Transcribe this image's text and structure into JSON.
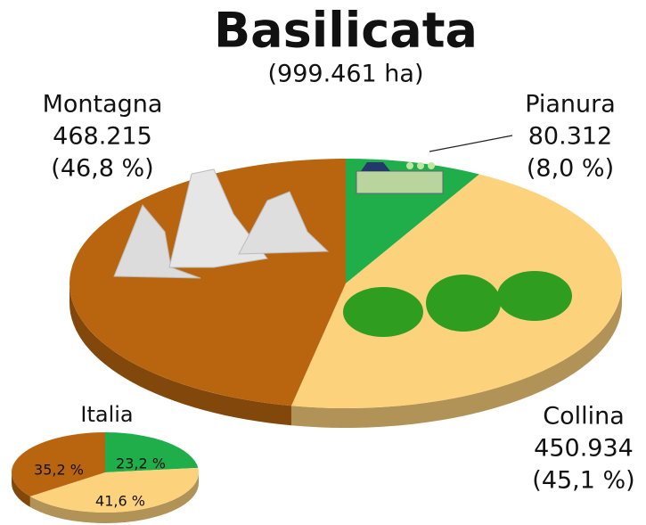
{
  "chart_data": [
    {
      "type": "pie",
      "title": "Basilicata",
      "subtitle": "(999.461 ha)",
      "categories": [
        "Pianura",
        "Collina",
        "Montagna"
      ],
      "values": [
        80312,
        450934,
        468215
      ],
      "value_labels": [
        "80.312",
        "450.934",
        "468.215"
      ],
      "share_labels": [
        "(8,0 %)",
        "(45,1 %)",
        "(46,8 %)"
      ],
      "colors": [
        "#1fae4a",
        "#fdd27c",
        "#b9650f"
      ]
    },
    {
      "type": "pie",
      "title": "Italia",
      "values": [
        23.2,
        41.6,
        35.2
      ],
      "value_labels": [
        "23,2 %",
        "41,6 %",
        "35,2 %"
      ],
      "colors": [
        "#1fae4a",
        "#fdd27c",
        "#b9650f"
      ]
    }
  ]
}
